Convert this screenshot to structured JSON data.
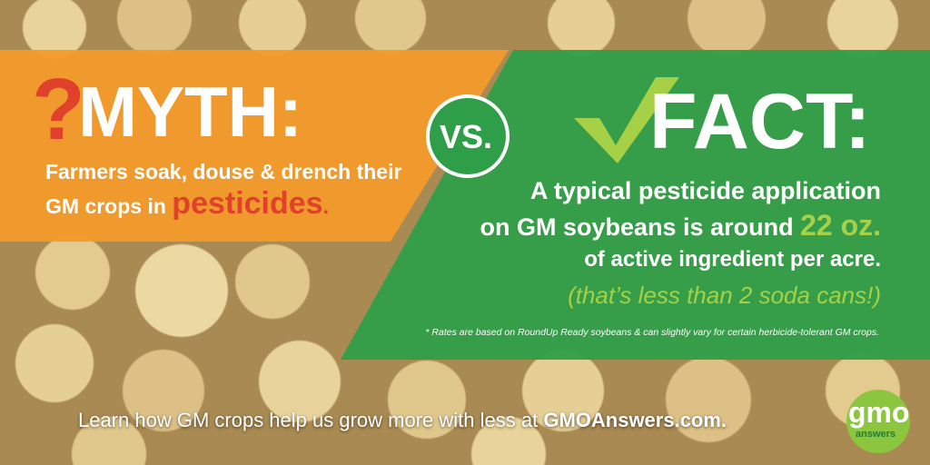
{
  "myth": {
    "mark": "?",
    "title": "MYTH:",
    "line1": "Farmers soak, douse & drench their",
    "line2_prefix": "GM crops in ",
    "highlight": "pesticides",
    "suffix": "."
  },
  "vs": "VS.",
  "fact": {
    "title": "FACT:",
    "line1": "A typical pesticide application",
    "line2_prefix": "on GM soybeans is around ",
    "amount": "22 oz.",
    "line3": "of active ingredient per acre.",
    "aside": "(that’s less than 2 soda cans!)",
    "footnote": "* Rates are based on RoundUp Ready soybeans & can slightly vary for certain herbicide-tolerant GM crops."
  },
  "footer": {
    "prefix": "Learn how GM crops help us grow more with less at ",
    "link": "GMOAnswers.com."
  },
  "logo": {
    "big": "gmo",
    "small": "answers"
  },
  "colors": {
    "orange": "#f39a2a",
    "green": "#2f9e48",
    "red": "#e0412b",
    "lime": "#a6d146",
    "dark_green": "#1e7d35"
  }
}
